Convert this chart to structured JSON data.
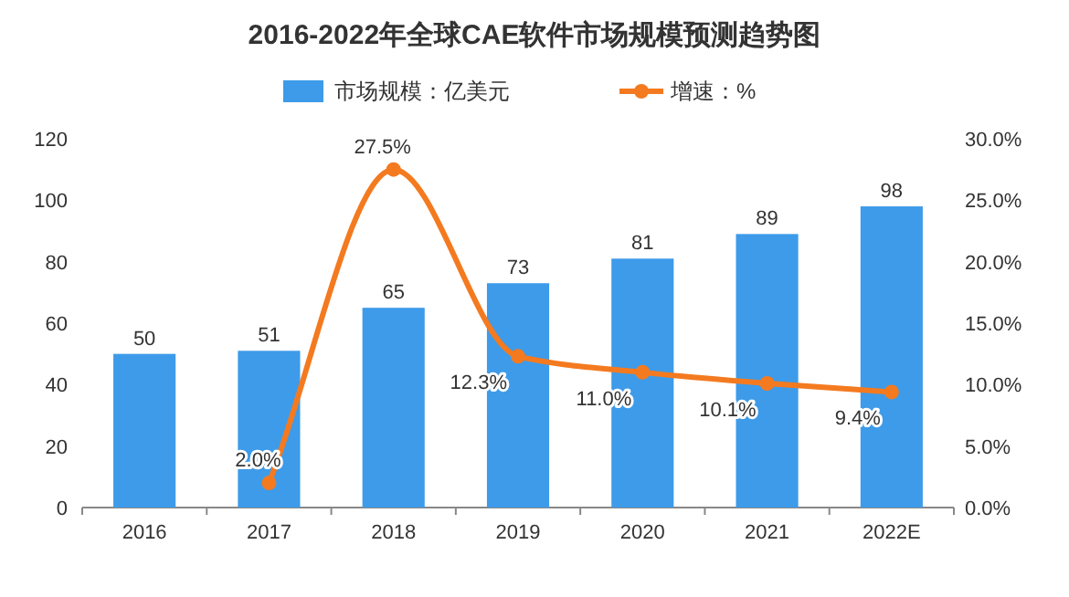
{
  "chart_data": {
    "type": "bar",
    "title": "2016-2022年全球CAE软件市场规模预测趋势图",
    "categories": [
      "2016",
      "2017",
      "2018",
      "2019",
      "2020",
      "2021",
      "2022E"
    ],
    "series": [
      {
        "name": "市场规模：亿美元",
        "color": "#3d9be9",
        "values": [
          50,
          51,
          65,
          73,
          81,
          89,
          98
        ],
        "value_labels": [
          "50",
          "51",
          "65",
          "73",
          "81",
          "89",
          "98"
        ]
      },
      {
        "name": "增速：%",
        "type": "line",
        "axis": "y2",
        "color": "#f47a20",
        "values": [
          null,
          2.0,
          27.5,
          12.3,
          11.0,
          10.1,
          9.4
        ],
        "value_labels": [
          null,
          "2.0%",
          "27.5%",
          "12.3%",
          "11.0%",
          "10.1%",
          "9.4%"
        ]
      }
    ],
    "ylim": [
      0,
      120
    ],
    "yticks": [
      0,
      20,
      40,
      60,
      80,
      100,
      120
    ],
    "y2lim": [
      0,
      30
    ],
    "y2ticks": [
      {
        "value": 0,
        "label": "0.0%"
      },
      {
        "value": 5,
        "label": "5.0%"
      },
      {
        "value": 10,
        "label": "10.0%"
      },
      {
        "value": 15,
        "label": "15.0%"
      },
      {
        "value": 20,
        "label": "20.0%"
      },
      {
        "value": 25,
        "label": "25.0%"
      },
      {
        "value": 30,
        "label": "30.0%"
      }
    ],
    "legend": "top",
    "marker": "circle"
  }
}
